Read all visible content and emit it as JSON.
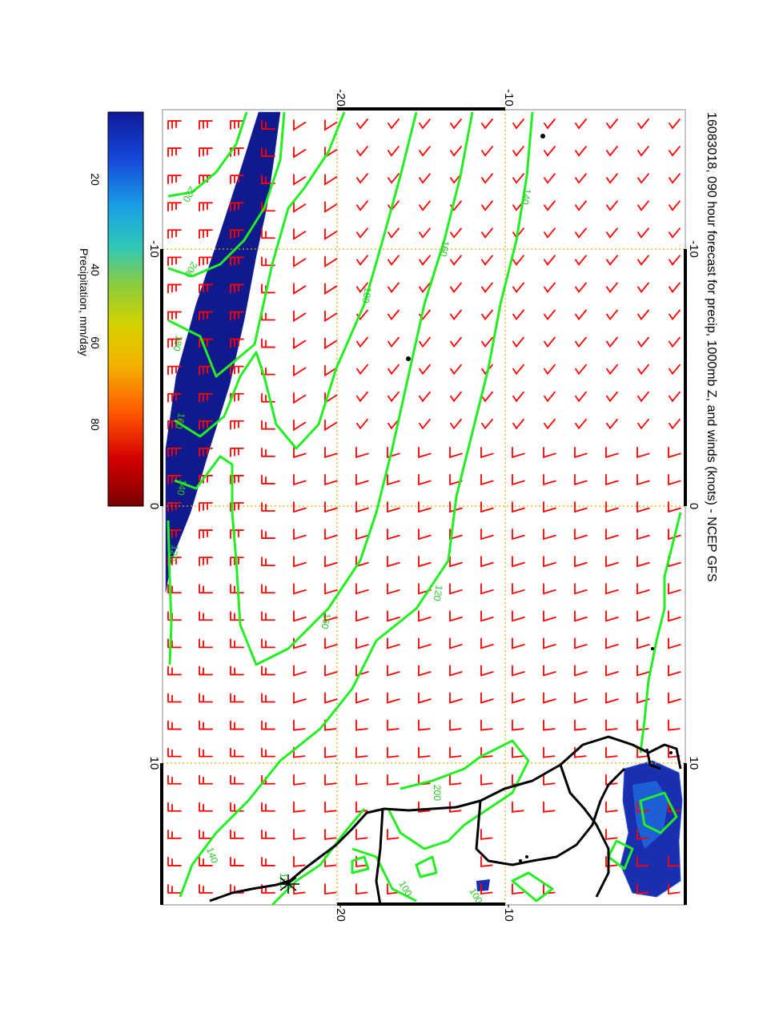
{
  "title": "16083018, 090 hour forecast for precip, 1000mb Z, and winds (knots) - NCEP GFS",
  "colorbar": {
    "label": "Precipitation, mm/day",
    "ticks": [
      "20",
      "40",
      "60",
      "80"
    ],
    "colors": [
      "#7a0000",
      "#d40000",
      "#ff5a00",
      "#f2b400",
      "#d6d200",
      "#8ccc3c",
      "#2fc8b8",
      "#1aa0e6",
      "#1448d8",
      "#101a9c"
    ]
  },
  "map": {
    "lat_labels_top": [
      "-20",
      "-10"
    ],
    "lat_labels_bottom": [
      "-20",
      "-10"
    ],
    "lon_labels_left": [
      "-10",
      "0",
      "10"
    ],
    "lon_labels_right": [
      "-10",
      "0",
      "10"
    ],
    "contour_labels": [
      "220",
      "200",
      "180",
      "160",
      "140",
      "120",
      "100",
      "180",
      "160",
      "140",
      "120",
      "140",
      "160",
      "180",
      "200",
      "100"
    ]
  },
  "colors": {
    "wind_barb": "#ff0000",
    "contour": "#22ee22",
    "contour_label": "#22cc22",
    "grid": "#ddaa00",
    "precip": "#111a8c",
    "coast": "#000000"
  },
  "barb_grid": {
    "rows": 29,
    "cols": 17
  }
}
